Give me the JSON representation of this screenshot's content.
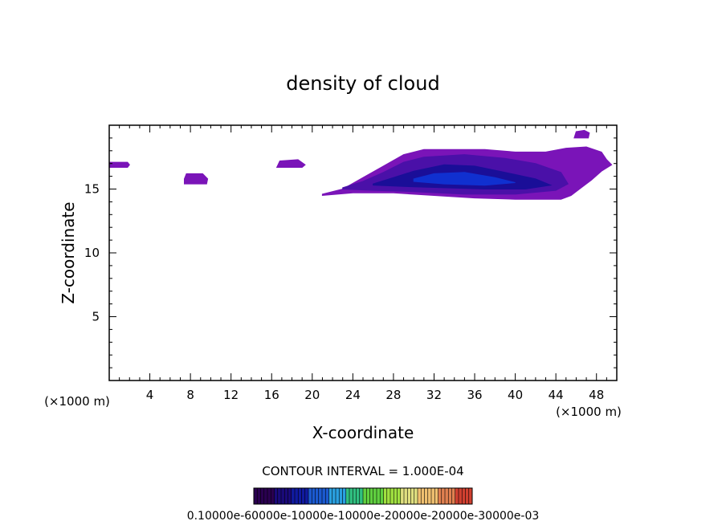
{
  "chart_data": {
    "type": "heatmap",
    "title": "density of cloud",
    "xlabel": "X-coordinate",
    "ylabel": "Z-coordinate",
    "x_unit": "(×1000 m)",
    "y_unit": "(×1000 m)",
    "xlim": [
      0,
      50
    ],
    "ylim": [
      0,
      20
    ],
    "xticks": [
      "4",
      "8",
      "12",
      "16",
      "20",
      "24",
      "28",
      "32",
      "36",
      "40",
      "44",
      "48"
    ],
    "yticks": [
      "5",
      "10",
      "15"
    ],
    "xtick_values": [
      4,
      8,
      12,
      16,
      20,
      24,
      28,
      32,
      36,
      40,
      44,
      48
    ],
    "ytick_values": [
      5,
      10,
      15
    ],
    "contour_interval_text": "CONTOUR INTERVAL = 1.000E-04",
    "colorbar_labels_text": "0.10000e-60000e-10000e-10000e-20000e-20000e-30000e-03",
    "colorbar_colors": [
      "#2a0050",
      "#1a0a7a",
      "#101aa0",
      "#1b5ad0",
      "#2aa0e0",
      "#30c080",
      "#60d040",
      "#a0e040",
      "#e0e080",
      "#f0c070",
      "#e08050",
      "#d04030"
    ],
    "regions": [
      {
        "name": "main-cloud-outer",
        "color": "#7a14b8",
        "points": [
          [
            21,
            14.6
          ],
          [
            23,
            15.0
          ],
          [
            25,
            15.9
          ],
          [
            27,
            16.8
          ],
          [
            29,
            17.7
          ],
          [
            31,
            18.1
          ],
          [
            37,
            18.1
          ],
          [
            40,
            17.9
          ],
          [
            43,
            17.9
          ],
          [
            45,
            18.2
          ],
          [
            47,
            18.3
          ],
          [
            48.5,
            17.9
          ],
          [
            49,
            17.3
          ],
          [
            49.5,
            16.9
          ],
          [
            48.5,
            16.4
          ],
          [
            47.5,
            15.7
          ],
          [
            46.5,
            15.1
          ],
          [
            45.5,
            14.5
          ],
          [
            44.5,
            14.2
          ],
          [
            40,
            14.2
          ],
          [
            36,
            14.3
          ],
          [
            32,
            14.5
          ],
          [
            28,
            14.7
          ],
          [
            24,
            14.7
          ],
          [
            21,
            14.5
          ]
        ]
      },
      {
        "name": "main-cloud-mid",
        "color": "#4a10a8",
        "points": [
          [
            23,
            15.1
          ],
          [
            25,
            15.6
          ],
          [
            27,
            16.3
          ],
          [
            29,
            17.1
          ],
          [
            31,
            17.5
          ],
          [
            35,
            17.7
          ],
          [
            39,
            17.4
          ],
          [
            42,
            17.0
          ],
          [
            44.5,
            16.3
          ],
          [
            45.2,
            15.4
          ],
          [
            44,
            14.9
          ],
          [
            40,
            14.6
          ],
          [
            35,
            14.6
          ],
          [
            30,
            14.8
          ],
          [
            26,
            14.9
          ],
          [
            23,
            15.0
          ]
        ]
      },
      {
        "name": "main-cloud-inner",
        "color": "#1a0e98",
        "points": [
          [
            26,
            15.4
          ],
          [
            28,
            15.9
          ],
          [
            30,
            16.4
          ],
          [
            33,
            16.9
          ],
          [
            36,
            16.8
          ],
          [
            39,
            16.3
          ],
          [
            42,
            15.8
          ],
          [
            43.5,
            15.3
          ],
          [
            41,
            15.0
          ],
          [
            37,
            15.0
          ],
          [
            33,
            15.1
          ],
          [
            29,
            15.2
          ],
          [
            26,
            15.3
          ]
        ]
      },
      {
        "name": "main-cloud-core",
        "color": "#1030d0",
        "points": [
          [
            30,
            15.8
          ],
          [
            32,
            16.2
          ],
          [
            35,
            16.3
          ],
          [
            38,
            15.9
          ],
          [
            40,
            15.5
          ],
          [
            37,
            15.3
          ],
          [
            33,
            15.4
          ],
          [
            30,
            15.6
          ]
        ]
      },
      {
        "name": "blob-left",
        "color": "#7a14b8",
        "points": [
          [
            0,
            16.7
          ],
          [
            1.8,
            16.7
          ],
          [
            2,
            16.9
          ],
          [
            1.8,
            17.1
          ],
          [
            0,
            17.1
          ]
        ]
      },
      {
        "name": "blob-8",
        "color": "#7a14b8",
        "points": [
          [
            7.4,
            15.4
          ],
          [
            9.6,
            15.4
          ],
          [
            9.7,
            15.8
          ],
          [
            9.2,
            16.2
          ],
          [
            7.6,
            16.2
          ],
          [
            7.4,
            15.8
          ]
        ]
      },
      {
        "name": "blob-17",
        "color": "#7a14b8",
        "points": [
          [
            16.5,
            16.7
          ],
          [
            19,
            16.7
          ],
          [
            19.3,
            16.9
          ],
          [
            18.6,
            17.3
          ],
          [
            16.8,
            17.2
          ]
        ]
      },
      {
        "name": "blob-top",
        "color": "#7a14b8",
        "points": [
          [
            45.8,
            19.0
          ],
          [
            47.2,
            19.0
          ],
          [
            47.3,
            19.4
          ],
          [
            46.8,
            19.6
          ],
          [
            46,
            19.5
          ]
        ]
      }
    ]
  }
}
